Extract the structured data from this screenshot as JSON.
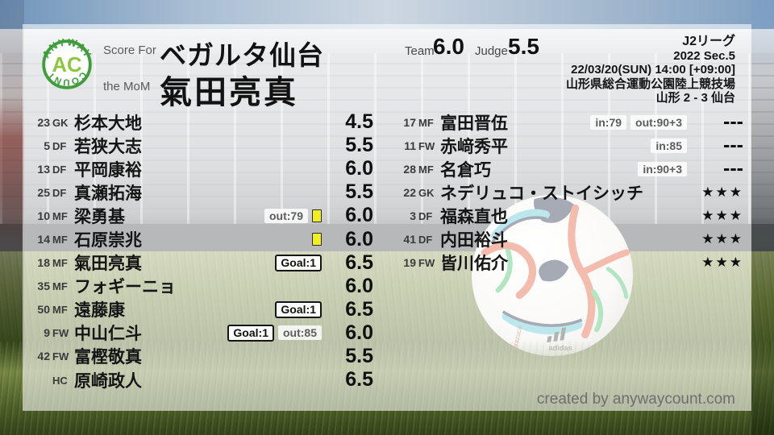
{
  "logo": {
    "arc_top": "ANYWAY",
    "arc_bottom": "COUNT",
    "monogram": "AC"
  },
  "header": {
    "score_for_label": "Score For",
    "team_name": "ベガルタ仙台",
    "mom_label": "the MoM",
    "mom_name": "氣田亮真",
    "team_rating_label": "Team",
    "team_rating": "6.0",
    "judge_rating_label": "Judge",
    "judge_rating": "5.5"
  },
  "match_info": {
    "league": "J2リーグ",
    "season": "2022 Sec.5",
    "kickoff": "22/03/20(SUN) 14:00 [+09:00]",
    "venue": "山形県総合運動公園陸上競技場",
    "result": "山形 2 - 3 仙台"
  },
  "starters": [
    {
      "num": "23",
      "pos": "GK",
      "name": "杉本大地",
      "score": "4.5",
      "badges": []
    },
    {
      "num": "5",
      "pos": "DF",
      "name": "若狭大志",
      "score": "5.5",
      "badges": []
    },
    {
      "num": "13",
      "pos": "DF",
      "name": "平岡康裕",
      "score": "6.0",
      "badges": []
    },
    {
      "num": "25",
      "pos": "DF",
      "name": "真瀬拓海",
      "score": "5.5",
      "badges": []
    },
    {
      "num": "10",
      "pos": "MF",
      "name": "梁勇基",
      "score": "6.0",
      "badges": [
        {
          "type": "sub",
          "label": "out:79"
        },
        {
          "type": "yellow-card",
          "label": ""
        }
      ]
    },
    {
      "num": "14",
      "pos": "MF",
      "name": "石原崇兆",
      "score": "6.0",
      "badges": [
        {
          "type": "yellow-card",
          "label": ""
        }
      ]
    },
    {
      "num": "18",
      "pos": "MF",
      "name": "氣田亮真",
      "score": "6.5",
      "badges": [
        {
          "type": "goal",
          "label": "Goal:1"
        }
      ]
    },
    {
      "num": "35",
      "pos": "MF",
      "name": "フォギーニョ",
      "score": "6.0",
      "badges": []
    },
    {
      "num": "50",
      "pos": "MF",
      "name": "遠藤康",
      "score": "6.5",
      "badges": [
        {
          "type": "goal",
          "label": "Goal:1"
        }
      ]
    },
    {
      "num": "9",
      "pos": "FW",
      "name": "中山仁斗",
      "score": "6.0",
      "badges": [
        {
          "type": "goal",
          "label": "Goal:1"
        },
        {
          "type": "sub",
          "label": "out:85"
        }
      ]
    },
    {
      "num": "42",
      "pos": "FW",
      "name": "富樫敬真",
      "score": "5.5",
      "badges": []
    },
    {
      "num": "",
      "pos": "HC",
      "name": "原崎政人",
      "score": "6.5",
      "badges": []
    }
  ],
  "bench": [
    {
      "num": "17",
      "pos": "MF",
      "name": "富田晋伍",
      "score": "---",
      "badges": [
        {
          "type": "sub",
          "label": "in:79"
        },
        {
          "type": "sub",
          "label": "out:90+3"
        }
      ]
    },
    {
      "num": "11",
      "pos": "FW",
      "name": "赤﨑秀平",
      "score": "---",
      "badges": [
        {
          "type": "sub",
          "label": "in:85"
        }
      ]
    },
    {
      "num": "28",
      "pos": "MF",
      "name": "名倉巧",
      "score": "---",
      "badges": [
        {
          "type": "sub",
          "label": "in:90+3"
        }
      ]
    },
    {
      "num": "22",
      "pos": "GK",
      "name": "ネデリュコ・ストイシッチ",
      "score": "★★★",
      "badges": []
    },
    {
      "num": "3",
      "pos": "DF",
      "name": "福森直也",
      "score": "★★★",
      "badges": []
    },
    {
      "num": "41",
      "pos": "DF",
      "name": "内田裕斗",
      "score": "★★★",
      "badges": []
    },
    {
      "num": "19",
      "pos": "FW",
      "name": "皆川佑介",
      "score": "★★★",
      "badges": []
    }
  ],
  "footer": {
    "credit": "created by anywaycount.com"
  },
  "colors": {
    "logo_ring_green": "#3f9d3b",
    "logo_monogram_green": "#8dc63f",
    "yellow_card": "#f1ee26",
    "sheet_overlay": "rgba(255,255,255,0.58)",
    "text_primary": "#141414",
    "text_muted": "#5d5d5d"
  }
}
